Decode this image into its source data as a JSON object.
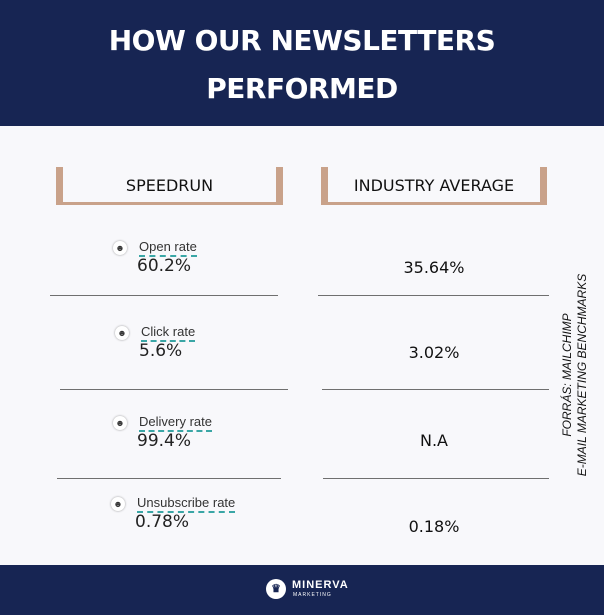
{
  "header": {
    "title_line1": "HOW OUR NEWSLETTERS",
    "title_line2": "PERFORMED"
  },
  "columns": {
    "speedrun": "SPEEDRUN",
    "industry": "INDUSTRY AVERAGE"
  },
  "metrics": [
    {
      "label": "Open rate",
      "speedrun": "60.2%",
      "industry": "35.64%"
    },
    {
      "label": "Click rate",
      "speedrun": "5.6%",
      "industry": "3.02%"
    },
    {
      "label": "Delivery rate",
      "speedrun": "99.4%",
      "industry": "N.A"
    },
    {
      "label": "Unsubscribe rate",
      "speedrun": "0.78%",
      "industry": "0.18%"
    }
  ],
  "source": {
    "line1": "FORRÁS: MAILCHIMP",
    "line2": "E-MAIL MARKETING  BENCHMARKS"
  },
  "footer": {
    "brand": "MINERVA",
    "sub": "MARKETING"
  },
  "colors": {
    "navy": "#172553",
    "accent": "#c9a28a",
    "label_underline": "#3aa6a6"
  }
}
